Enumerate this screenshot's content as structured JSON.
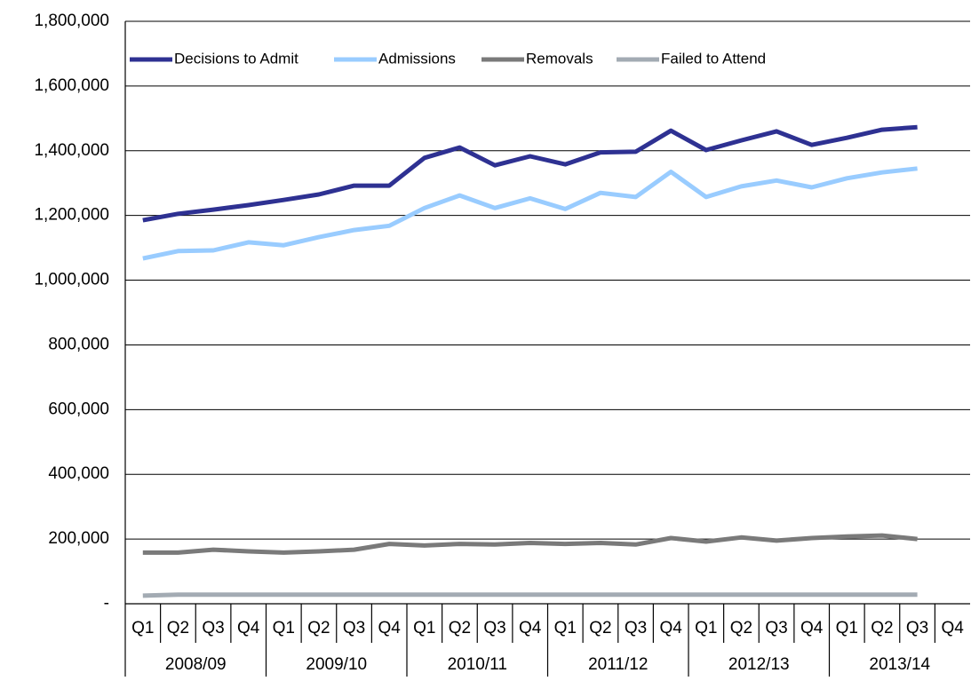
{
  "chart_data": {
    "type": "line",
    "categories": [
      "Q1",
      "Q2",
      "Q3",
      "Q4",
      "Q1",
      "Q2",
      "Q3",
      "Q4",
      "Q1",
      "Q2",
      "Q3",
      "Q4",
      "Q1",
      "Q2",
      "Q3",
      "Q4",
      "Q1",
      "Q2",
      "Q3",
      "Q4",
      "Q1",
      "Q2",
      "Q3",
      "Q4"
    ],
    "groups": [
      "2008/09",
      "2009/10",
      "2010/11",
      "2011/12",
      "2012/13",
      "2013/14"
    ],
    "series": [
      {
        "name": "Decisions to Admit",
        "color": "#2e3192",
        "values": [
          1185000,
          1205000,
          1218000,
          1232000,
          1248000,
          1265000,
          1292000,
          1292000,
          1378000,
          1410000,
          1355000,
          1383000,
          1358000,
          1395000,
          1397000,
          1462000,
          1402000,
          1432000,
          1460000,
          1418000,
          1440000,
          1465000,
          1473000,
          null
        ]
      },
      {
        "name": "Admissions",
        "color": "#99ccff",
        "values": [
          1067000,
          1090000,
          1092000,
          1117000,
          1108000,
          1133000,
          1155000,
          1168000,
          1223000,
          1262000,
          1223000,
          1253000,
          1220000,
          1270000,
          1257000,
          1335000,
          1257000,
          1290000,
          1308000,
          1287000,
          1315000,
          1333000,
          1345000,
          null
        ]
      },
      {
        "name": "Removals",
        "color": "#7a7a7a",
        "values": [
          158000,
          158000,
          167000,
          162000,
          158000,
          162000,
          167000,
          185000,
          180000,
          185000,
          183000,
          188000,
          185000,
          188000,
          183000,
          203000,
          192000,
          205000,
          195000,
          203000,
          208000,
          211000,
          200000,
          null
        ]
      },
      {
        "name": "Failed to Attend",
        "color": "#a3abb3",
        "values": [
          25000,
          28000,
          28000,
          28000,
          28000,
          28000,
          28000,
          28000,
          28000,
          28000,
          28000,
          28000,
          28000,
          28000,
          28000,
          28000,
          28000,
          28000,
          28000,
          28000,
          28000,
          28000,
          28000,
          null
        ]
      }
    ],
    "ylim": [
      0,
      1800000
    ],
    "yticks": [
      {
        "value": 0,
        "label": "-"
      },
      {
        "value": 200000,
        "label": "200,000"
      },
      {
        "value": 400000,
        "label": "400,000"
      },
      {
        "value": 600000,
        "label": "600,000"
      },
      {
        "value": 800000,
        "label": "800,000"
      },
      {
        "value": 1000000,
        "label": "1,000,000"
      },
      {
        "value": 1200000,
        "label": "1,200,000"
      },
      {
        "value": 1400000,
        "label": "1,400,000"
      },
      {
        "value": 1600000,
        "label": "1,600,000"
      },
      {
        "value": 1800000,
        "label": "1,800,000"
      }
    ],
    "grid": true,
    "legend": "top-left"
  }
}
